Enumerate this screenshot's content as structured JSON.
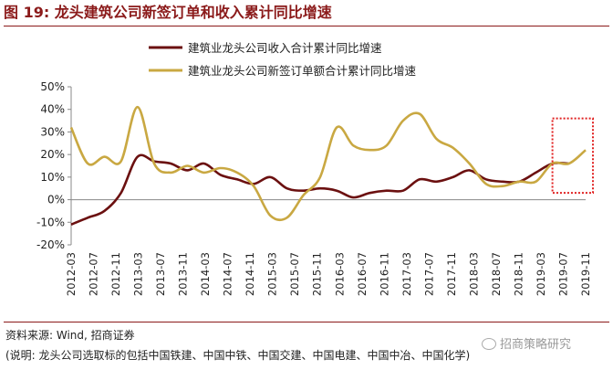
{
  "title": "图 19:  龙头建筑公司新签订单和收入累计同比增速",
  "source": "资料来源:  Wind,  招商证券",
  "note": "(说明:  龙头公司选取标的包括中国铁建、中国中铁、中国交建、中国电建、中国中冶、中国化学)",
  "watermark": "招商策略研究",
  "colors": {
    "title": "#8b1a1a",
    "series_income": "#6b1010",
    "series_orders": "#c9a842",
    "highlight_box": "#e02020",
    "grid": "#d0d0d0"
  },
  "chart_data": {
    "type": "line",
    "title": "",
    "xlabel": "",
    "ylabel": "",
    "ylim": [
      -20,
      50
    ],
    "yticks": [
      -20,
      -10,
      0,
      10,
      20,
      30,
      40,
      50
    ],
    "ytick_labels": [
      "-20%",
      "-10%",
      "0%",
      "10%",
      "20%",
      "30%",
      "40%",
      "50%"
    ],
    "x_labels": [
      "2012-03",
      "2012-07",
      "2012-11",
      "2013-03",
      "2013-07",
      "2013-11",
      "2014-03",
      "2014-07",
      "2014-11",
      "2015-03",
      "2015-07",
      "2015-11",
      "2016-03",
      "2016-07",
      "2016-11",
      "2017-03",
      "2017-07",
      "2017-11",
      "2018-03",
      "2018-07",
      "2018-11",
      "2019-03",
      "2019-07",
      "2019-11"
    ],
    "x_range": [
      0,
      31
    ],
    "grid": false,
    "legend_position": "top",
    "highlight": {
      "x_range": [
        29,
        33
      ],
      "y_range": [
        3,
        36
      ],
      "style": "dotted-box"
    },
    "series": [
      {
        "name": "建筑业龙头公司收入合计累计同比增速",
        "x": [
          0,
          1,
          2,
          3,
          4,
          5,
          6,
          7,
          8,
          9,
          10,
          11,
          12,
          13,
          14,
          15,
          16,
          17,
          18,
          19,
          20,
          21,
          22,
          23,
          24,
          25,
          26,
          27,
          28,
          29,
          30
        ],
        "values": [
          -11,
          -8,
          -5,
          3,
          19,
          17,
          16,
          13,
          16,
          11,
          9,
          7,
          10,
          5,
          4,
          5,
          4,
          1,
          3,
          4,
          4,
          9,
          8,
          10,
          13,
          9,
          8,
          8,
          12,
          16,
          16
        ]
      },
      {
        "name": "建筑业龙头公司新签订单额合计累计同比增速",
        "x": [
          0,
          1,
          2,
          3,
          4,
          5,
          6,
          7,
          8,
          9,
          10,
          11,
          12,
          13,
          14,
          15,
          16,
          17,
          18,
          19,
          20,
          21,
          22,
          23,
          24,
          25,
          26,
          27,
          28,
          29,
          30,
          31
        ],
        "values": [
          32,
          16,
          19,
          17,
          41,
          16,
          12,
          15,
          12,
          14,
          12,
          6,
          -7,
          -8,
          2,
          10,
          32,
          24,
          22,
          24,
          35,
          38,
          27,
          23,
          16,
          7,
          6,
          8,
          8,
          16,
          16,
          22
        ]
      }
    ]
  }
}
